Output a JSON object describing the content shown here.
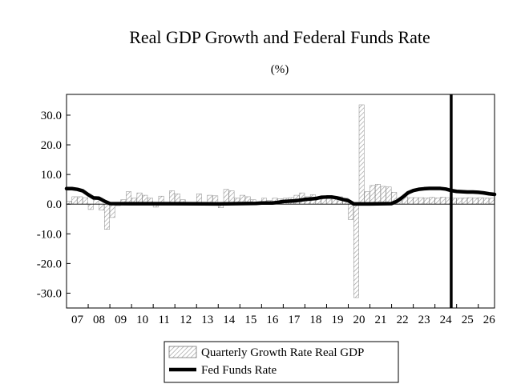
{
  "chart_data": {
    "type": "bar",
    "title": "Real GDP Growth and Federal Funds Rate",
    "subtitle": "(%)",
    "xlabel": "",
    "ylabel": "",
    "ylim": [
      -35,
      37
    ],
    "yticks": [
      30.0,
      20.0,
      10.0,
      0.0,
      -10.0,
      -20.0,
      -30.0
    ],
    "ytick_labels": [
      "30.0",
      "20.0",
      "10.0",
      "0.0",
      "-10.0",
      "-20.0",
      "-30.0"
    ],
    "x_start": 2007.0,
    "x_end": 2026.75,
    "xtick_labels": [
      "07",
      "08",
      "09",
      "10",
      "11",
      "12",
      "13",
      "14",
      "15",
      "16",
      "17",
      "18",
      "19",
      "20",
      "21",
      "22",
      "23",
      "24",
      "25",
      "26"
    ],
    "grid": false,
    "legend_position": "bottom-center",
    "vertical_line_x": 2024.75,
    "series": [
      {
        "name": "Quarterly Growth Rate Real GDP",
        "type": "bar",
        "color": "#ffffff",
        "hatch": "diagonal",
        "x": [
          2007.0,
          2007.25,
          2007.5,
          2007.75,
          2008.0,
          2008.25,
          2008.5,
          2008.75,
          2009.0,
          2009.25,
          2009.5,
          2009.75,
          2010.0,
          2010.25,
          2010.5,
          2010.75,
          2011.0,
          2011.25,
          2011.5,
          2011.75,
          2012.0,
          2012.25,
          2012.5,
          2012.75,
          2013.0,
          2013.25,
          2013.5,
          2013.75,
          2014.0,
          2014.25,
          2014.5,
          2014.75,
          2015.0,
          2015.25,
          2015.5,
          2015.75,
          2016.0,
          2016.25,
          2016.5,
          2016.75,
          2017.0,
          2017.25,
          2017.5,
          2017.75,
          2018.0,
          2018.25,
          2018.5,
          2018.75,
          2019.0,
          2019.25,
          2019.5,
          2019.75,
          2020.0,
          2020.25,
          2020.5,
          2020.75,
          2021.0,
          2021.25,
          2021.5,
          2021.75,
          2022.0,
          2022.25,
          2022.5,
          2022.75,
          2023.0,
          2023.25,
          2023.5,
          2023.75,
          2024.0,
          2024.25,
          2024.5,
          2024.75,
          2025.0,
          2025.25,
          2025.5,
          2025.75,
          2026.0,
          2026.25,
          2026.5
        ],
        "values": [
          1.0,
          2.5,
          2.5,
          2.2,
          -1.8,
          2.0,
          -2.0,
          -8.5,
          -4.5,
          -0.5,
          1.5,
          4.2,
          2.0,
          3.8,
          3.0,
          2.0,
          -1.0,
          2.7,
          0.0,
          4.5,
          3.5,
          1.5,
          0.5,
          0.0,
          3.5,
          0.5,
          3.0,
          2.8,
          -1.2,
          5.0,
          4.5,
          2.0,
          3.0,
          2.5,
          1.5,
          0.5,
          2.0,
          1.2,
          2.0,
          1.8,
          2.0,
          2.2,
          3.0,
          3.8,
          2.5,
          3.2,
          2.5,
          2.0,
          2.5,
          2.5,
          2.5,
          2.0,
          -5.2,
          -31.5,
          33.5,
          4.2,
          6.3,
          6.7,
          6.0,
          5.8,
          4.0,
          1.2,
          2.5,
          2.2,
          2.2,
          2.2,
          2.1,
          2.3,
          2.1,
          2.4,
          2.2,
          2.0,
          2.0,
          2.1,
          2.2,
          2.1,
          2.2,
          2.1,
          2.0
        ]
      },
      {
        "name": "Fed Funds Rate",
        "type": "line",
        "color": "#000000",
        "x": [
          2007.0,
          2007.25,
          2007.5,
          2007.75,
          2008.0,
          2008.25,
          2008.5,
          2008.75,
          2009.0,
          2010.0,
          2012.0,
          2014.0,
          2015.75,
          2016.0,
          2016.5,
          2016.75,
          2017.0,
          2017.5,
          2017.75,
          2018.0,
          2018.5,
          2018.75,
          2019.0,
          2019.25,
          2019.5,
          2019.75,
          2020.0,
          2020.25,
          2021.0,
          2022.0,
          2022.25,
          2022.5,
          2022.75,
          2023.0,
          2023.25,
          2023.5,
          2023.75,
          2024.0,
          2024.25,
          2024.5,
          2024.75,
          2025.0,
          2025.5,
          2025.75,
          2026.0,
          2026.25,
          2026.5,
          2026.75
        ],
        "values": [
          5.25,
          5.25,
          5.0,
          4.5,
          3.2,
          2.1,
          2.0,
          1.0,
          0.2,
          0.15,
          0.15,
          0.1,
          0.25,
          0.4,
          0.4,
          0.6,
          0.9,
          1.1,
          1.3,
          1.6,
          1.9,
          2.3,
          2.4,
          2.4,
          2.1,
          1.6,
          1.2,
          0.1,
          0.1,
          0.2,
          1.0,
          2.3,
          3.8,
          4.6,
          5.0,
          5.2,
          5.3,
          5.3,
          5.3,
          5.1,
          4.6,
          4.3,
          4.1,
          4.1,
          4.0,
          3.8,
          3.5,
          3.3
        ]
      }
    ]
  }
}
